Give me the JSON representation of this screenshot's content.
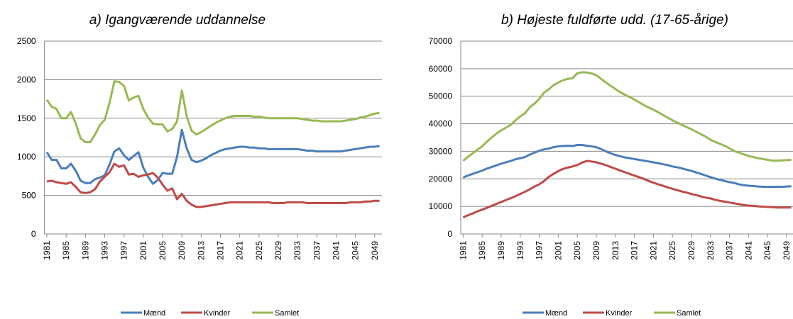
{
  "chart_data": [
    {
      "type": "line",
      "title": "a) Igangværende  uddannelse",
      "x": [
        1981,
        1982,
        1983,
        1984,
        1985,
        1986,
        1987,
        1988,
        1989,
        1990,
        1991,
        1992,
        1993,
        1994,
        1995,
        1996,
        1997,
        1998,
        1999,
        2000,
        2001,
        2002,
        2003,
        2004,
        2005,
        2006,
        2007,
        2008,
        2009,
        2010,
        2011,
        2012,
        2013,
        2014,
        2015,
        2016,
        2017,
        2018,
        2019,
        2020,
        2021,
        2022,
        2023,
        2024,
        2025,
        2026,
        2027,
        2028,
        2029,
        2030,
        2031,
        2032,
        2033,
        2034,
        2035,
        2036,
        2037,
        2038,
        2039,
        2040,
        2041,
        2042,
        2043,
        2044,
        2045,
        2046,
        2047,
        2048,
        2049,
        2050
      ],
      "xlim": [
        1980.5,
        2050.5
      ],
      "xticks": [
        1981,
        1985,
        1989,
        1993,
        1997,
        2001,
        2005,
        2009,
        2013,
        2017,
        2021,
        2025,
        2029,
        2033,
        2037,
        2041,
        2045,
        2049
      ],
      "ylim": [
        0,
        2500
      ],
      "yticks": [
        0,
        500,
        1000,
        1500,
        2000,
        2500
      ],
      "grid": true,
      "legend": "bottom",
      "series": [
        {
          "name": "Mænd",
          "color": "#4a7ebb",
          "values": [
            1060,
            960,
            960,
            850,
            850,
            910,
            820,
            690,
            660,
            660,
            710,
            730,
            760,
            900,
            1070,
            1110,
            1020,
            960,
            1010,
            1060,
            860,
            740,
            650,
            700,
            790,
            780,
            780,
            1000,
            1350,
            1110,
            960,
            930,
            950,
            980,
            1020,
            1050,
            1080,
            1100,
            1110,
            1120,
            1130,
            1130,
            1120,
            1120,
            1110,
            1110,
            1100,
            1100,
            1100,
            1100,
            1100,
            1100,
            1100,
            1090,
            1080,
            1080,
            1070,
            1070,
            1070,
            1070,
            1070,
            1070,
            1080,
            1090,
            1100,
            1110,
            1120,
            1130,
            1130,
            1140
          ]
        },
        {
          "name": "Kvinder",
          "color": "#be4b48",
          "values": [
            680,
            690,
            670,
            660,
            650,
            670,
            610,
            540,
            530,
            540,
            580,
            680,
            740,
            800,
            910,
            870,
            890,
            770,
            780,
            740,
            760,
            770,
            790,
            730,
            640,
            560,
            590,
            450,
            520,
            430,
            380,
            350,
            350,
            360,
            370,
            380,
            390,
            400,
            410,
            410,
            410,
            410,
            410,
            410,
            410,
            410,
            410,
            400,
            400,
            400,
            410,
            410,
            410,
            410,
            400,
            400,
            400,
            400,
            400,
            400,
            400,
            400,
            400,
            410,
            410,
            410,
            420,
            420,
            430,
            430
          ]
        },
        {
          "name": "Samlet",
          "color": "#98b954",
          "values": [
            1740,
            1650,
            1620,
            1500,
            1500,
            1580,
            1430,
            1240,
            1190,
            1190,
            1290,
            1410,
            1480,
            1700,
            1980,
            1970,
            1920,
            1730,
            1770,
            1790,
            1620,
            1510,
            1430,
            1420,
            1420,
            1330,
            1360,
            1460,
            1860,
            1530,
            1340,
            1290,
            1320,
            1360,
            1400,
            1440,
            1470,
            1500,
            1520,
            1530,
            1530,
            1530,
            1530,
            1520,
            1520,
            1510,
            1500,
            1500,
            1500,
            1500,
            1500,
            1500,
            1500,
            1490,
            1480,
            1470,
            1470,
            1460,
            1460,
            1460,
            1460,
            1460,
            1470,
            1480,
            1490,
            1510,
            1520,
            1540,
            1560,
            1570
          ]
        }
      ]
    },
    {
      "type": "line",
      "title": "b) Højeste fuldførte udd. (17-65-årige)",
      "x": [
        1981,
        1982,
        1983,
        1984,
        1985,
        1986,
        1987,
        1988,
        1989,
        1990,
        1991,
        1992,
        1993,
        1994,
        1995,
        1996,
        1997,
        1998,
        1999,
        2000,
        2001,
        2002,
        2003,
        2004,
        2005,
        2006,
        2007,
        2008,
        2009,
        2010,
        2011,
        2012,
        2013,
        2014,
        2015,
        2016,
        2017,
        2018,
        2019,
        2020,
        2021,
        2022,
        2023,
        2024,
        2025,
        2026,
        2027,
        2028,
        2029,
        2030,
        2031,
        2032,
        2033,
        2034,
        2035,
        2036,
        2037,
        2038,
        2039,
        2040,
        2041,
        2042,
        2043,
        2044,
        2045,
        2046,
        2047,
        2048,
        2049,
        2050
      ],
      "xlim": [
        1980.5,
        2050.5
      ],
      "xticks": [
        1981,
        1985,
        1989,
        1993,
        1997,
        2001,
        2005,
        2009,
        2013,
        2017,
        2021,
        2025,
        2029,
        2033,
        2037,
        2041,
        2045,
        2049
      ],
      "ylim": [
        0,
        70000
      ],
      "yticks": [
        0,
        10000,
        20000,
        30000,
        40000,
        50000,
        60000,
        70000
      ],
      "grid": true,
      "legend": "bottom",
      "series": [
        {
          "name": "Mænd",
          "color": "#4a7ebb",
          "values": [
            20500,
            21200,
            21800,
            22400,
            23000,
            23700,
            24300,
            24900,
            25500,
            26000,
            26500,
            27100,
            27500,
            27900,
            28800,
            29500,
            30200,
            30700,
            31000,
            31500,
            31800,
            31900,
            32000,
            31900,
            32300,
            32300,
            32000,
            31800,
            31500,
            30800,
            30000,
            29300,
            28700,
            28200,
            27800,
            27500,
            27200,
            26900,
            26600,
            26300,
            26000,
            25700,
            25300,
            25000,
            24500,
            24200,
            23800,
            23300,
            22900,
            22300,
            21800,
            21200,
            20600,
            20100,
            19600,
            19200,
            18800,
            18500,
            18000,
            17700,
            17500,
            17400,
            17200,
            17100,
            17100,
            17100,
            17100,
            17100,
            17200,
            17300
          ]
        },
        {
          "name": "Kvinder",
          "color": "#be4b48",
          "values": [
            6000,
            6800,
            7400,
            8200,
            8800,
            9500,
            10200,
            10900,
            11600,
            12300,
            13000,
            13700,
            14500,
            15300,
            16200,
            17200,
            18000,
            19200,
            20700,
            21800,
            22800,
            23600,
            24100,
            24500,
            25000,
            25900,
            26500,
            26300,
            26000,
            25500,
            25000,
            24300,
            23700,
            23000,
            22400,
            21800,
            21200,
            20600,
            20000,
            19200,
            18600,
            18000,
            17500,
            16900,
            16400,
            15900,
            15400,
            15000,
            14500,
            14100,
            13600,
            13200,
            12900,
            12400,
            12000,
            11700,
            11400,
            11100,
            10800,
            10500,
            10300,
            10200,
            10000,
            9900,
            9800,
            9700,
            9600,
            9600,
            9600,
            9600
          ]
        },
        {
          "name": "Samlet",
          "color": "#98b954",
          "values": [
            26500,
            28000,
            29200,
            30600,
            31800,
            33500,
            35000,
            36400,
            37600,
            38600,
            39600,
            41200,
            42700,
            43800,
            46000,
            47300,
            49000,
            51300,
            52500,
            54000,
            55000,
            55800,
            56300,
            56500,
            58300,
            58700,
            58600,
            58300,
            57600,
            56300,
            55000,
            53800,
            52600,
            51500,
            50500,
            49700,
            48800,
            47800,
            46800,
            45900,
            45100,
            44200,
            43200,
            42200,
            41300,
            40400,
            39600,
            38800,
            38000,
            37100,
            36200,
            35300,
            34200,
            33400,
            32700,
            32000,
            31100,
            30100,
            29500,
            28900,
            28300,
            27900,
            27500,
            27200,
            26900,
            26600,
            26600,
            26700,
            26800,
            26900
          ]
        }
      ]
    }
  ]
}
